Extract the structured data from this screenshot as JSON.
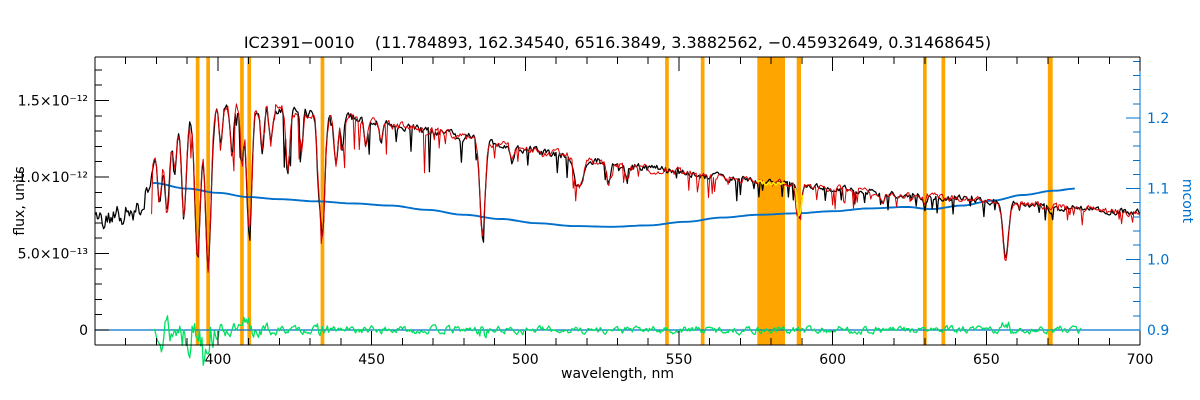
{
  "chart_data": {
    "type": "line",
    "title": "IC2391−0010    (11.784893, 162.34540, 6516.3849, 3.3882562, −0.45932649, 0.31468645)",
    "xlabel": "wavelength, nm",
    "ylabel_left": "flux, units",
    "ylabel_right": "mcont",
    "x_range": [
      360,
      700
    ],
    "x_major_ticks": [
      400,
      450,
      500,
      550,
      600,
      650,
      700
    ],
    "x_minor_step": 10,
    "y_left_ticks": [
      {
        "v": 0.0,
        "label": "0"
      },
      {
        "v": 0.5,
        "label": "5.0×10⁻¹³"
      },
      {
        "v": 1.0,
        "label": "1.0×10⁻¹²"
      },
      {
        "v": 1.5,
        "label": "1.5×10⁻¹²"
      }
    ],
    "y_left_minor_step": 0.1,
    "y_left_range_e12": [
      -0.098,
      1.784
    ],
    "y_right_ticks": [
      {
        "v": 0.9,
        "label": "0.9"
      },
      {
        "v": 1.0,
        "label": "1.0"
      },
      {
        "v": 1.1,
        "label": "1.1"
      },
      {
        "v": 1.2,
        "label": "1.2"
      }
    ],
    "y_right_minor_step": 0.02,
    "y_right_range": [
      0.879,
      1.286
    ],
    "grid": false,
    "legend": "none",
    "colors": {
      "observed": "#000000",
      "fit": "#dd0000",
      "mcont": "#0070cc",
      "residual": "#00e060",
      "band": "#ffa500",
      "masked": "#ffe800",
      "axis": "#000000"
    },
    "orange_bands_nm": [
      [
        392.8,
        394.0
      ],
      [
        396.2,
        397.4
      ],
      [
        407.2,
        408.4
      ],
      [
        409.6,
        410.8
      ],
      [
        433.4,
        434.6
      ],
      [
        545.5,
        546.7
      ],
      [
        557.1,
        558.3
      ],
      [
        575.5,
        584.5
      ],
      [
        588.3,
        589.7
      ],
      [
        629.4,
        630.6
      ],
      [
        635.4,
        636.6
      ],
      [
        670.0,
        671.6
      ]
    ],
    "masked_yellow_nm": [
      [
        575.5,
        584.5
      ],
      [
        587.8,
        590.2
      ]
    ],
    "continuum_e12": [
      [
        360,
        0.74
      ],
      [
        368,
        0.75
      ],
      [
        374,
        0.77
      ],
      [
        377,
        0.92
      ],
      [
        380,
        1.17
      ],
      [
        383,
        1.3
      ],
      [
        386,
        1.38
      ],
      [
        390,
        1.41
      ],
      [
        396,
        1.43
      ],
      [
        403,
        1.44
      ],
      [
        410,
        1.45
      ],
      [
        418,
        1.44
      ],
      [
        426,
        1.42
      ],
      [
        434,
        1.41
      ],
      [
        442,
        1.39
      ],
      [
        450,
        1.36
      ],
      [
        460,
        1.33
      ],
      [
        470,
        1.3
      ],
      [
        480,
        1.26
      ],
      [
        490,
        1.22
      ],
      [
        500,
        1.18
      ],
      [
        510,
        1.145
      ],
      [
        520,
        1.11
      ],
      [
        530,
        1.08
      ],
      [
        540,
        1.055
      ],
      [
        550,
        1.03
      ],
      [
        560,
        1.005
      ],
      [
        570,
        0.985
      ],
      [
        580,
        0.963
      ],
      [
        590,
        0.945
      ],
      [
        600,
        0.925
      ],
      [
        610,
        0.906
      ],
      [
        620,
        0.89
      ],
      [
        630,
        0.875
      ],
      [
        640,
        0.86
      ],
      [
        650,
        0.845
      ],
      [
        660,
        0.826
      ],
      [
        670,
        0.81
      ],
      [
        680,
        0.795
      ],
      [
        690,
        0.78
      ],
      [
        700,
        0.765
      ]
    ],
    "absorption_lines": [
      [
        381.0,
        0.3,
        0.7
      ],
      [
        383.5,
        0.42,
        0.8
      ],
      [
        386.0,
        0.25,
        0.6
      ],
      [
        388.9,
        0.48,
        0.8
      ],
      [
        393.4,
        0.66,
        0.9
      ],
      [
        396.8,
        0.7,
        0.9
      ],
      [
        400.9,
        0.18,
        0.5
      ],
      [
        404.6,
        0.22,
        0.5
      ],
      [
        407.8,
        0.25,
        0.5
      ],
      [
        410.2,
        0.58,
        0.8
      ],
      [
        414.4,
        0.18,
        0.5
      ],
      [
        417.2,
        0.15,
        0.5
      ],
      [
        422.7,
        0.28,
        0.6
      ],
      [
        427.2,
        0.18,
        0.5
      ],
      [
        432.6,
        0.2,
        0.5
      ],
      [
        434.0,
        0.56,
        0.8
      ],
      [
        438.4,
        0.22,
        0.6
      ],
      [
        440.5,
        0.15,
        0.5
      ],
      [
        448.1,
        0.12,
        0.5
      ],
      [
        453.1,
        0.1,
        0.5
      ],
      [
        486.1,
        0.5,
        0.8
      ],
      [
        495.7,
        0.08,
        0.5
      ],
      [
        516.7,
        0.14,
        0.9
      ],
      [
        518.4,
        0.12,
        0.7
      ],
      [
        527.0,
        0.12,
        0.6
      ],
      [
        532.8,
        0.07,
        0.5
      ],
      [
        588.9,
        0.16,
        0.6
      ],
      [
        589.6,
        0.1,
        0.5
      ],
      [
        616.2,
        0.06,
        0.5
      ],
      [
        630.0,
        0.05,
        0.4
      ],
      [
        656.3,
        0.45,
        0.9
      ],
      [
        670.8,
        0.05,
        0.4
      ]
    ],
    "series": {
      "observed": {
        "name": "observed spectrum",
        "color": "#000000",
        "range_nm": [
          360,
          700
        ]
      },
      "fit": {
        "name": "fitted spectrum",
        "color": "#dd0000",
        "range_nm": [
          378.4,
          700
        ]
      },
      "residual": {
        "name": "fit residual",
        "color": "#00e060",
        "range_nm": [
          379.2,
          680.8
        ],
        "mean": 0
      },
      "zero_line": {
        "name": "zero level",
        "color": "#0070cc",
        "value": 0
      },
      "mcont": {
        "name": "mcont",
        "color": "#0070cc",
        "points": [
          [
            378.8,
            1.108
          ],
          [
            390,
            1.1
          ],
          [
            400,
            1.094
          ],
          [
            410,
            1.088
          ],
          [
            420,
            1.085
          ],
          [
            432,
            1.082
          ],
          [
            444,
            1.079
          ],
          [
            456,
            1.076
          ],
          [
            468,
            1.07
          ],
          [
            480,
            1.063
          ],
          [
            492,
            1.057
          ],
          [
            504,
            1.051
          ],
          [
            516,
            1.047
          ],
          [
            528,
            1.046
          ],
          [
            540,
            1.048
          ],
          [
            552,
            1.053
          ],
          [
            564,
            1.059
          ],
          [
            576,
            1.063
          ],
          [
            588,
            1.065
          ],
          [
            600,
            1.068
          ],
          [
            612,
            1.072
          ],
          [
            624,
            1.074
          ],
          [
            632,
            1.071
          ],
          [
            642,
            1.076
          ],
          [
            652,
            1.083
          ],
          [
            662,
            1.091
          ],
          [
            672,
            1.097
          ],
          [
            679,
            1.1
          ]
        ]
      }
    }
  }
}
